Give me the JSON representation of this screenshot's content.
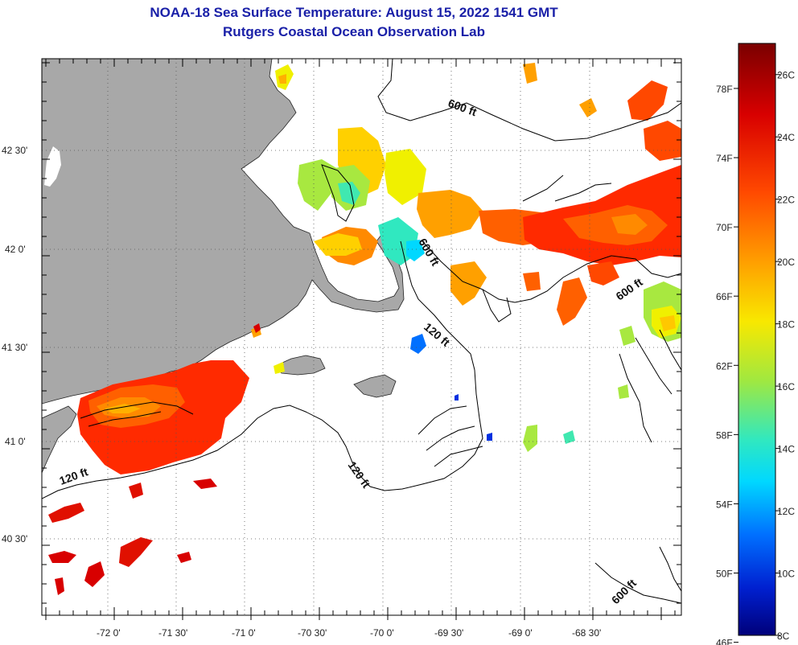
{
  "title": {
    "line1": "NOAA-18 Sea Surface Temperature:  August 15, 2022 1541 GMT",
    "line2": "Rutgers Coastal Ocean Observation Lab"
  },
  "axes": {
    "lon_ticks": [
      "-72 0'",
      "-71 30'",
      "-71 0'",
      "-70 30'",
      "-70 0'",
      "-69 30'",
      "-69 0'",
      "-68 30'"
    ],
    "lat_ticks": [
      "42 30'",
      "42 0'",
      "41 30'",
      "41 0'",
      "40 30'"
    ]
  },
  "contour_labels": [
    "600 ft",
    "600 ft",
    "600 ft",
    "120 ft",
    "120 ft",
    "120 ft",
    "600 ft"
  ],
  "colorbar": {
    "fahrenheit_labels": [
      "78F",
      "74F",
      "70F",
      "66F",
      "62F",
      "58F",
      "54F",
      "50F",
      "46F"
    ],
    "celsius_labels": [
      "26C",
      "24C",
      "22C",
      "20C",
      "18C",
      "16C",
      "14C",
      "12C",
      "10C",
      "8C"
    ],
    "range_celsius": [
      8,
      27
    ],
    "colors": [
      "#7a0000",
      "#c80000",
      "#ff2a00",
      "#ff8000",
      "#ffc800",
      "#f0f000",
      "#a8e830",
      "#40e8b0",
      "#00e8f0",
      "#0090ff",
      "#0030e0",
      "#000090"
    ]
  },
  "colors": {
    "land": "#a8a8a8",
    "ocean_nodata": "#ffffff",
    "title": "#1a20a8"
  }
}
